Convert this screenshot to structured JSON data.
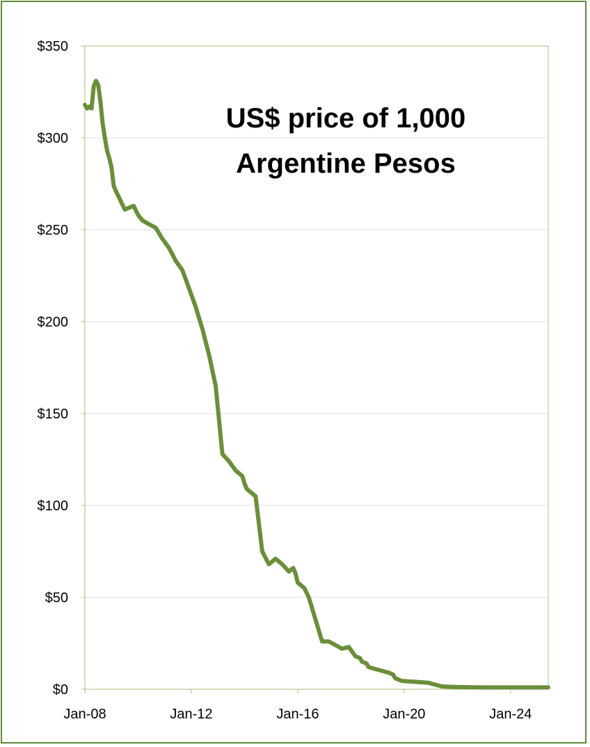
{
  "chart_data": {
    "type": "line",
    "title_lines": [
      "US$ price of 1,000",
      "Argentine Pesos"
    ],
    "xlabel": "",
    "ylabel": "",
    "x_ticks": [
      "Jan-08",
      "Jan-12",
      "Jan-16",
      "Jan-20",
      "Jan-24"
    ],
    "y_ticks": [
      "$0",
      "$50",
      "$100",
      "$150",
      "$200",
      "$250",
      "$300",
      "$350"
    ],
    "ylim": [
      0,
      350
    ],
    "xlim": [
      "2008-01",
      "2025-06"
    ],
    "grid": "horizontal",
    "legend": "none",
    "line_color": "#6b8e3a",
    "series": [
      {
        "x": [
          "2008-01",
          "2008-02",
          "2008-03",
          "2008-04",
          "2008-05",
          "2008-06",
          "2008-07",
          "2008-08",
          "2008-09",
          "2008-10",
          "2008-11",
          "2008-12",
          "2009-01",
          "2009-02",
          "2009-03",
          "2009-05",
          "2009-07",
          "2009-09",
          "2009-11",
          "2010-01",
          "2010-03",
          "2010-06",
          "2010-09",
          "2010-12",
          "2011-03",
          "2011-06",
          "2011-09",
          "2011-12",
          "2012-03",
          "2012-06",
          "2012-09",
          "2012-12",
          "2013-03",
          "2013-06",
          "2013-09",
          "2013-12",
          "2014-01",
          "2014-02",
          "2014-06",
          "2014-09",
          "2014-12",
          "2015-03",
          "2015-06",
          "2015-09",
          "2015-11",
          "2015-12",
          "2016-01",
          "2016-02",
          "2016-04",
          "2016-06",
          "2016-09",
          "2016-12",
          "2017-03",
          "2017-06",
          "2017-09",
          "2017-12",
          "2018-03",
          "2018-05",
          "2018-06",
          "2018-08",
          "2018-09",
          "2018-12",
          "2019-03",
          "2019-06",
          "2019-08",
          "2019-09",
          "2019-12",
          "2020-06",
          "2020-12",
          "2021-06",
          "2021-12",
          "2022-06",
          "2022-12",
          "2023-06",
          "2023-08",
          "2023-12",
          "2024-06",
          "2024-12",
          "2025-06"
        ],
        "y": [
          318,
          316,
          317,
          316,
          328,
          331,
          329,
          320,
          308,
          300,
          293,
          289,
          284,
          274,
          271,
          266,
          261,
          262,
          263,
          258,
          255,
          253,
          251,
          245,
          240,
          233,
          228,
          218,
          208,
          196,
          182,
          165,
          128,
          124,
          119,
          116,
          112,
          109,
          105,
          75,
          68,
          71,
          68,
          64,
          66,
          63,
          58,
          57,
          55,
          50,
          38,
          26,
          26,
          24,
          22,
          23,
          18,
          17,
          15,
          14,
          12,
          11,
          10,
          9,
          8,
          6,
          4.5,
          4,
          3.5,
          1.5,
          1.2,
          1.1,
          1.0,
          1.0,
          1.0,
          1.0,
          1.0,
          1.0,
          1.0
        ]
      }
    ]
  }
}
